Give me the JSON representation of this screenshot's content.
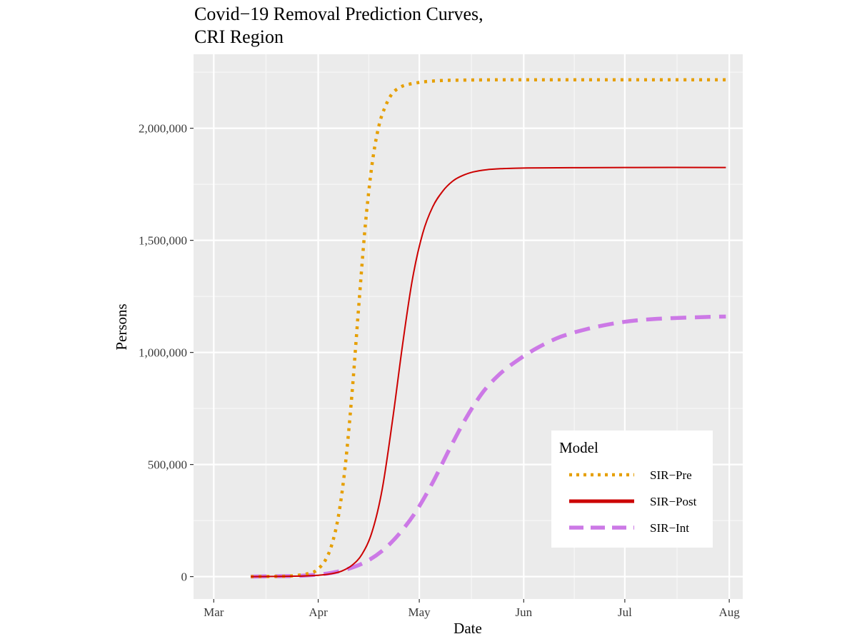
{
  "chart_data": {
    "type": "line",
    "title": [
      "Covid−19 Removal Prediction Curves,",
      "CRI Region"
    ],
    "xlabel": "Date",
    "ylabel": "Persons",
    "x_range": [
      "2020-02-24",
      "2020-08-05"
    ],
    "x_ticks": [
      {
        "date": "2020-03-01",
        "label": "Mar"
      },
      {
        "date": "2020-04-01",
        "label": "Apr"
      },
      {
        "date": "2020-05-01",
        "label": "May"
      },
      {
        "date": "2020-06-01",
        "label": "Jun"
      },
      {
        "date": "2020-07-01",
        "label": "Jul"
      },
      {
        "date": "2020-08-01",
        "label": "Aug"
      }
    ],
    "ylim": [
      -100000,
      2330000
    ],
    "y_ticks": [
      {
        "value": 0,
        "label": "0"
      },
      {
        "value": 500000,
        "label": "500,000"
      },
      {
        "value": 1000000,
        "label": "1,000,000"
      },
      {
        "value": 1500000,
        "label": "1,500,000"
      },
      {
        "value": 2000000,
        "label": "2,000,000"
      }
    ],
    "grid": true,
    "legend": {
      "title": "Model",
      "position": "bottom-right"
    },
    "series": [
      {
        "name": "SIR−Pre",
        "color": "#E69F00",
        "line_style": "dotted",
        "x": [
          "2020-03-12",
          "2020-03-20",
          "2020-03-25",
          "2020-03-30",
          "2020-04-01",
          "2020-04-03",
          "2020-04-05",
          "2020-04-07",
          "2020-04-09",
          "2020-04-11",
          "2020-04-13",
          "2020-04-15",
          "2020-04-17",
          "2020-04-19",
          "2020-04-21",
          "2020-04-23",
          "2020-04-25",
          "2020-04-27",
          "2020-04-30",
          "2020-05-03",
          "2020-05-08",
          "2020-05-15",
          "2020-05-25",
          "2020-06-10",
          "2020-07-01",
          "2020-07-31"
        ],
        "y": [
          0,
          1000,
          4000,
          17000,
          35000,
          70000,
          140000,
          270000,
          490000,
          810000,
          1200000,
          1570000,
          1840000,
          2010000,
          2100000,
          2155000,
          2180000,
          2193000,
          2202000,
          2208000,
          2213000,
          2215000,
          2216000,
          2216000,
          2216000,
          2216000
        ]
      },
      {
        "name": "SIR−Post",
        "color": "#CC0000",
        "line_style": "solid",
        "x": [
          "2020-03-12",
          "2020-03-25",
          "2020-04-01",
          "2020-04-05",
          "2020-04-08",
          "2020-04-11",
          "2020-04-14",
          "2020-04-17",
          "2020-04-20",
          "2020-04-23",
          "2020-04-26",
          "2020-04-29",
          "2020-05-02",
          "2020-05-05",
          "2020-05-08",
          "2020-05-11",
          "2020-05-14",
          "2020-05-17",
          "2020-05-21",
          "2020-05-26",
          "2020-06-02",
          "2020-06-15",
          "2020-07-01",
          "2020-07-31"
        ],
        "y": [
          0,
          2000,
          6000,
          13000,
          25000,
          50000,
          100000,
          200000,
          390000,
          690000,
          1030000,
          1330000,
          1530000,
          1650000,
          1720000,
          1765000,
          1790000,
          1805000,
          1815000,
          1820000,
          1823000,
          1824000,
          1825000,
          1825000
        ]
      },
      {
        "name": "SIR−Int",
        "color": "#CC79E6",
        "line_style": "dashed",
        "x": [
          "2020-03-12",
          "2020-03-25",
          "2020-04-01",
          "2020-04-05",
          "2020-04-10",
          "2020-04-15",
          "2020-04-20",
          "2020-04-25",
          "2020-04-30",
          "2020-05-05",
          "2020-05-10",
          "2020-05-15",
          "2020-05-20",
          "2020-05-25",
          "2020-05-30",
          "2020-06-05",
          "2020-06-12",
          "2020-06-20",
          "2020-06-28",
          "2020-07-06",
          "2020-07-15",
          "2020-07-25",
          "2020-07-31"
        ],
        "y": [
          0,
          3000,
          9000,
          17000,
          35000,
          65000,
          115000,
          190000,
          290000,
          420000,
          570000,
          710000,
          825000,
          905000,
          963000,
          1020000,
          1070000,
          1105000,
          1130000,
          1145000,
          1153000,
          1158000,
          1160000
        ]
      }
    ]
  }
}
